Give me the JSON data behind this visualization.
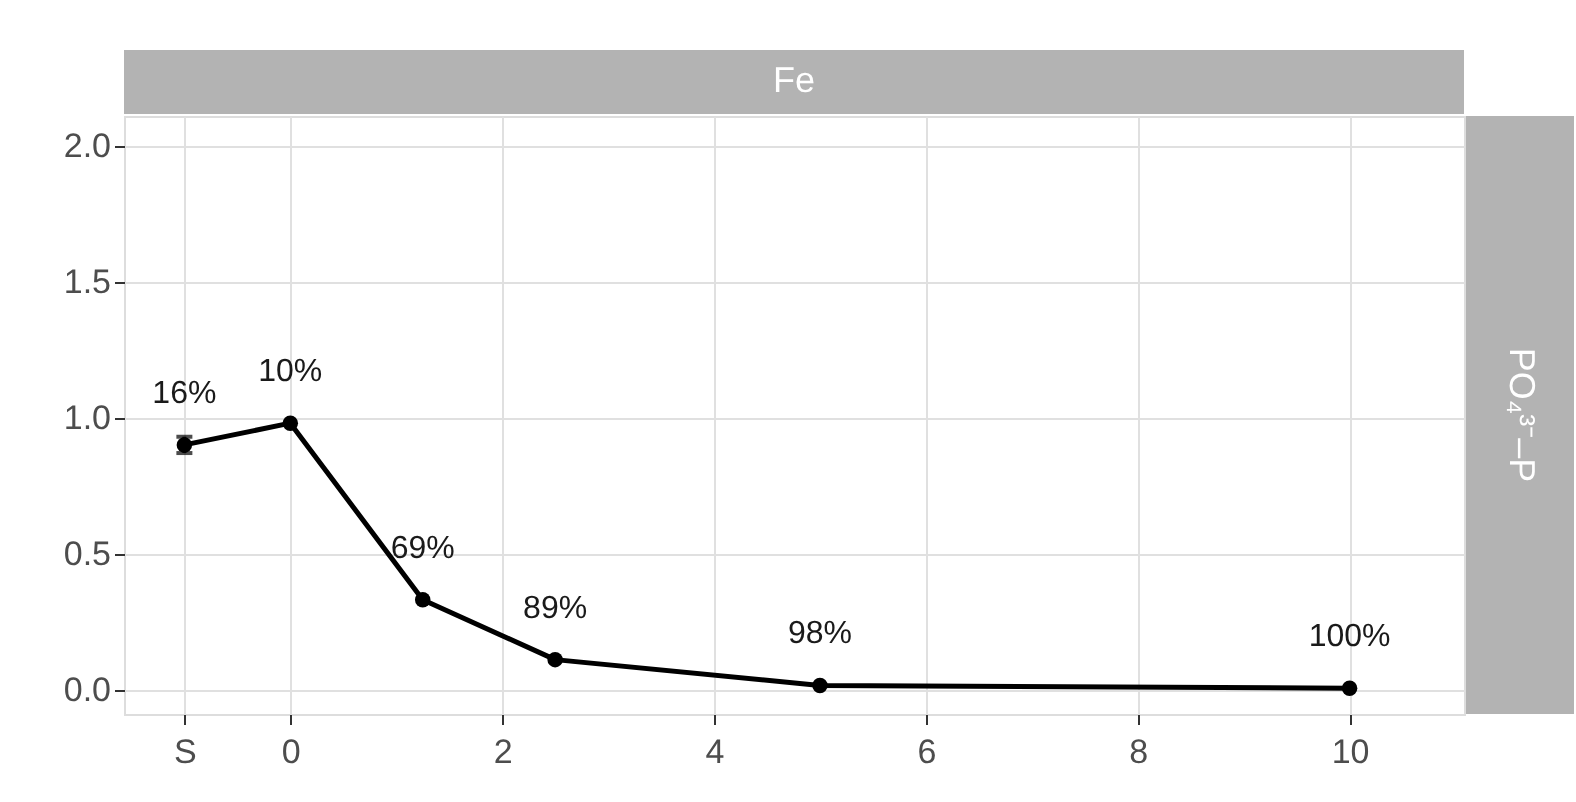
{
  "chart_data": {
    "type": "line",
    "title": "Fe",
    "y2label": "PO₄³⁻–P",
    "x": [
      -1,
      0,
      1.25,
      2.5,
      5,
      10
    ],
    "values": [
      0.9,
      0.98,
      0.33,
      0.11,
      0.015,
      0.005
    ],
    "errors": [
      0.03,
      null,
      null,
      null,
      null,
      null
    ],
    "annotations": [
      {
        "text": "16%",
        "x": -1,
        "y": 0.9
      },
      {
        "text": "10%",
        "x": 0,
        "y": 0.98
      },
      {
        "text": "69%",
        "x": 1.25,
        "y": 0.33
      },
      {
        "text": "89%",
        "x": 2.5,
        "y": 0.11
      },
      {
        "text": "98%",
        "x": 5,
        "y": 0.015
      },
      {
        "text": "100%",
        "x": 10,
        "y": 0.005
      }
    ],
    "color": "#000000",
    "marker": "circle",
    "line_style": "solid",
    "grid": true,
    "xlim": [
      -1.57,
      11.08
    ],
    "xticks": [
      {
        "value": -1,
        "label": "S"
      },
      0,
      2,
      4,
      6,
      8,
      10
    ],
    "ylim": [
      -0.09,
      2.11
    ],
    "yticks": [
      {
        "value": 0,
        "label": "0.0"
      },
      {
        "value": 0.5,
        "label": "0.5"
      },
      {
        "value": 1,
        "label": "1.0"
      },
      {
        "value": 1.5,
        "label": "1.5"
      },
      {
        "value": 2,
        "label": "2.0"
      }
    ]
  }
}
